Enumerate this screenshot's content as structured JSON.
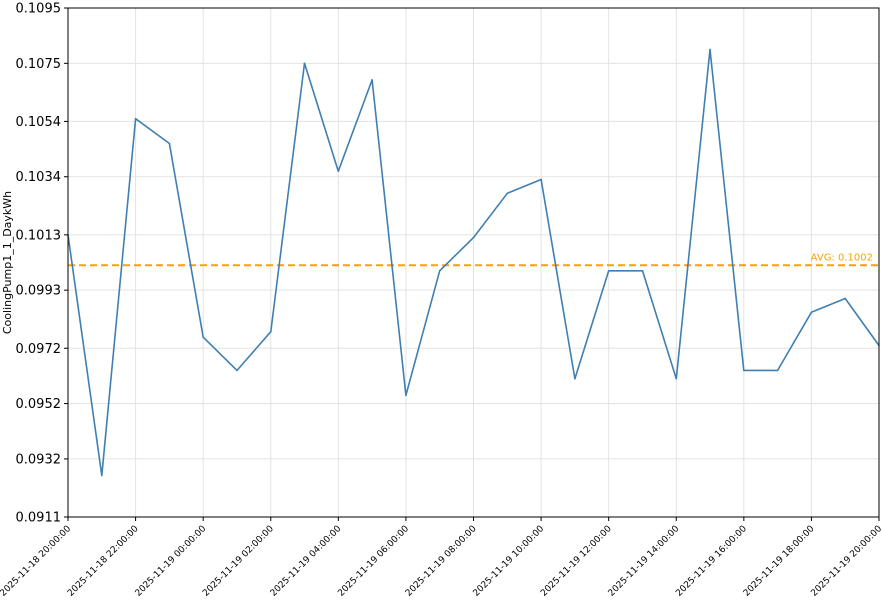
{
  "chart_data": {
    "type": "line",
    "title": "",
    "xlabel": "",
    "ylabel": "CoolingPump1_1_DaykWh",
    "ylim": [
      0.0911,
      0.1095
    ],
    "yticks": [
      "0.0911",
      "0.0932",
      "0.0952",
      "0.0972",
      "0.0993",
      "0.1013",
      "0.1034",
      "0.1054",
      "0.1075",
      "0.1095"
    ],
    "xticks": [
      "2025-11-18 20:00:00",
      "2025-11-18 22:00:00",
      "2025-11-19 00:00:00",
      "2025-11-19 02:00:00",
      "2025-11-19 04:00:00",
      "2025-11-19 06:00:00",
      "2025-11-19 08:00:00",
      "2025-11-19 10:00:00",
      "2025-11-19 12:00:00",
      "2025-11-19 14:00:00",
      "2025-11-19 16:00:00",
      "2025-11-19 18:00:00",
      "2025-11-19 20:00:00"
    ],
    "x": [
      "2025-11-18 20:00:00",
      "2025-11-18 21:00:00",
      "2025-11-18 22:00:00",
      "2025-11-18 23:00:00",
      "2025-11-19 00:00:00",
      "2025-11-19 01:00:00",
      "2025-11-19 02:00:00",
      "2025-11-19 03:00:00",
      "2025-11-19 04:00:00",
      "2025-11-19 05:00:00",
      "2025-11-19 06:00:00",
      "2025-11-19 07:00:00",
      "2025-11-19 08:00:00",
      "2025-11-19 09:00:00",
      "2025-11-19 10:00:00",
      "2025-11-19 11:00:00",
      "2025-11-19 12:00:00",
      "2025-11-19 13:00:00",
      "2025-11-19 14:00:00",
      "2025-11-19 15:00:00",
      "2025-11-19 16:00:00",
      "2025-11-19 17:00:00",
      "2025-11-19 18:00:00",
      "2025-11-19 19:00:00",
      "2025-11-19 20:00:00"
    ],
    "series": [
      {
        "color": "#3f7fb1",
        "values": [
          0.1013,
          0.0926,
          0.1055,
          0.1046,
          0.0976,
          0.0964,
          0.0978,
          0.1075,
          0.1036,
          0.1069,
          0.0955,
          0.1,
          0.1012,
          0.1028,
          0.1033,
          0.0961,
          0.1,
          0.1,
          0.0961,
          0.108,
          0.0964,
          0.0964,
          0.0985,
          0.099,
          0.0973
        ]
      }
    ],
    "average": {
      "value": 0.1002,
      "label": "AVG: 0.1002",
      "color": "#ffa000",
      "style": "dashed"
    },
    "grid": true,
    "legend": "none"
  }
}
